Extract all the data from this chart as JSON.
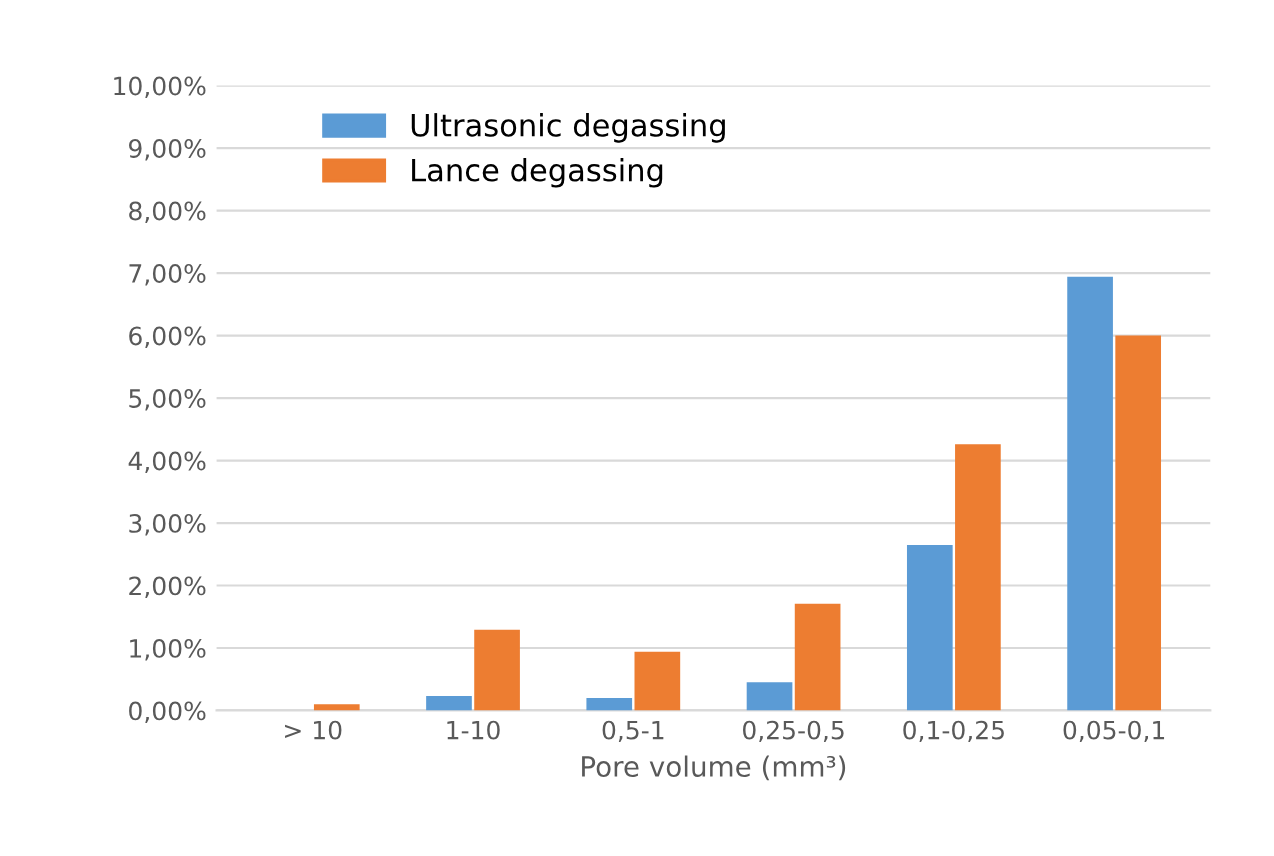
{
  "chart_data": {
    "type": "bar",
    "xlabel": "Pore volume (mm³)",
    "categories": [
      "> 10",
      "1-10",
      "0,5-1",
      "0,25-0,5",
      "0,1-0,25",
      "0,05-0,1"
    ],
    "series": [
      {
        "name": "Ultrasonic degassing",
        "color": "#5b9bd5",
        "values": [
          0,
          0.23,
          0.2,
          0.45,
          2.65,
          6.94
        ]
      },
      {
        "name": "Lance degassing",
        "color": "#ed7d31",
        "values": [
          0.1,
          1.29,
          0.94,
          1.71,
          4.26,
          6.0
        ]
      }
    ],
    "ylim": [
      0,
      10
    ],
    "yticks": [
      {
        "value": 0,
        "label": "0,00%"
      },
      {
        "value": 1,
        "label": "1,00%"
      },
      {
        "value": 2,
        "label": "2,00%"
      },
      {
        "value": 3,
        "label": "3,00%"
      },
      {
        "value": 4,
        "label": "4,00%"
      },
      {
        "value": 5,
        "label": "5,00%"
      },
      {
        "value": 6,
        "label": "6,00%"
      },
      {
        "value": 7,
        "label": "7,00%"
      },
      {
        "value": 8,
        "label": "8,00%"
      },
      {
        "value": 9,
        "label": "9,00%"
      },
      {
        "value": 10,
        "label": "10,00%"
      }
    ],
    "grid": "y",
    "legend": "top left"
  }
}
